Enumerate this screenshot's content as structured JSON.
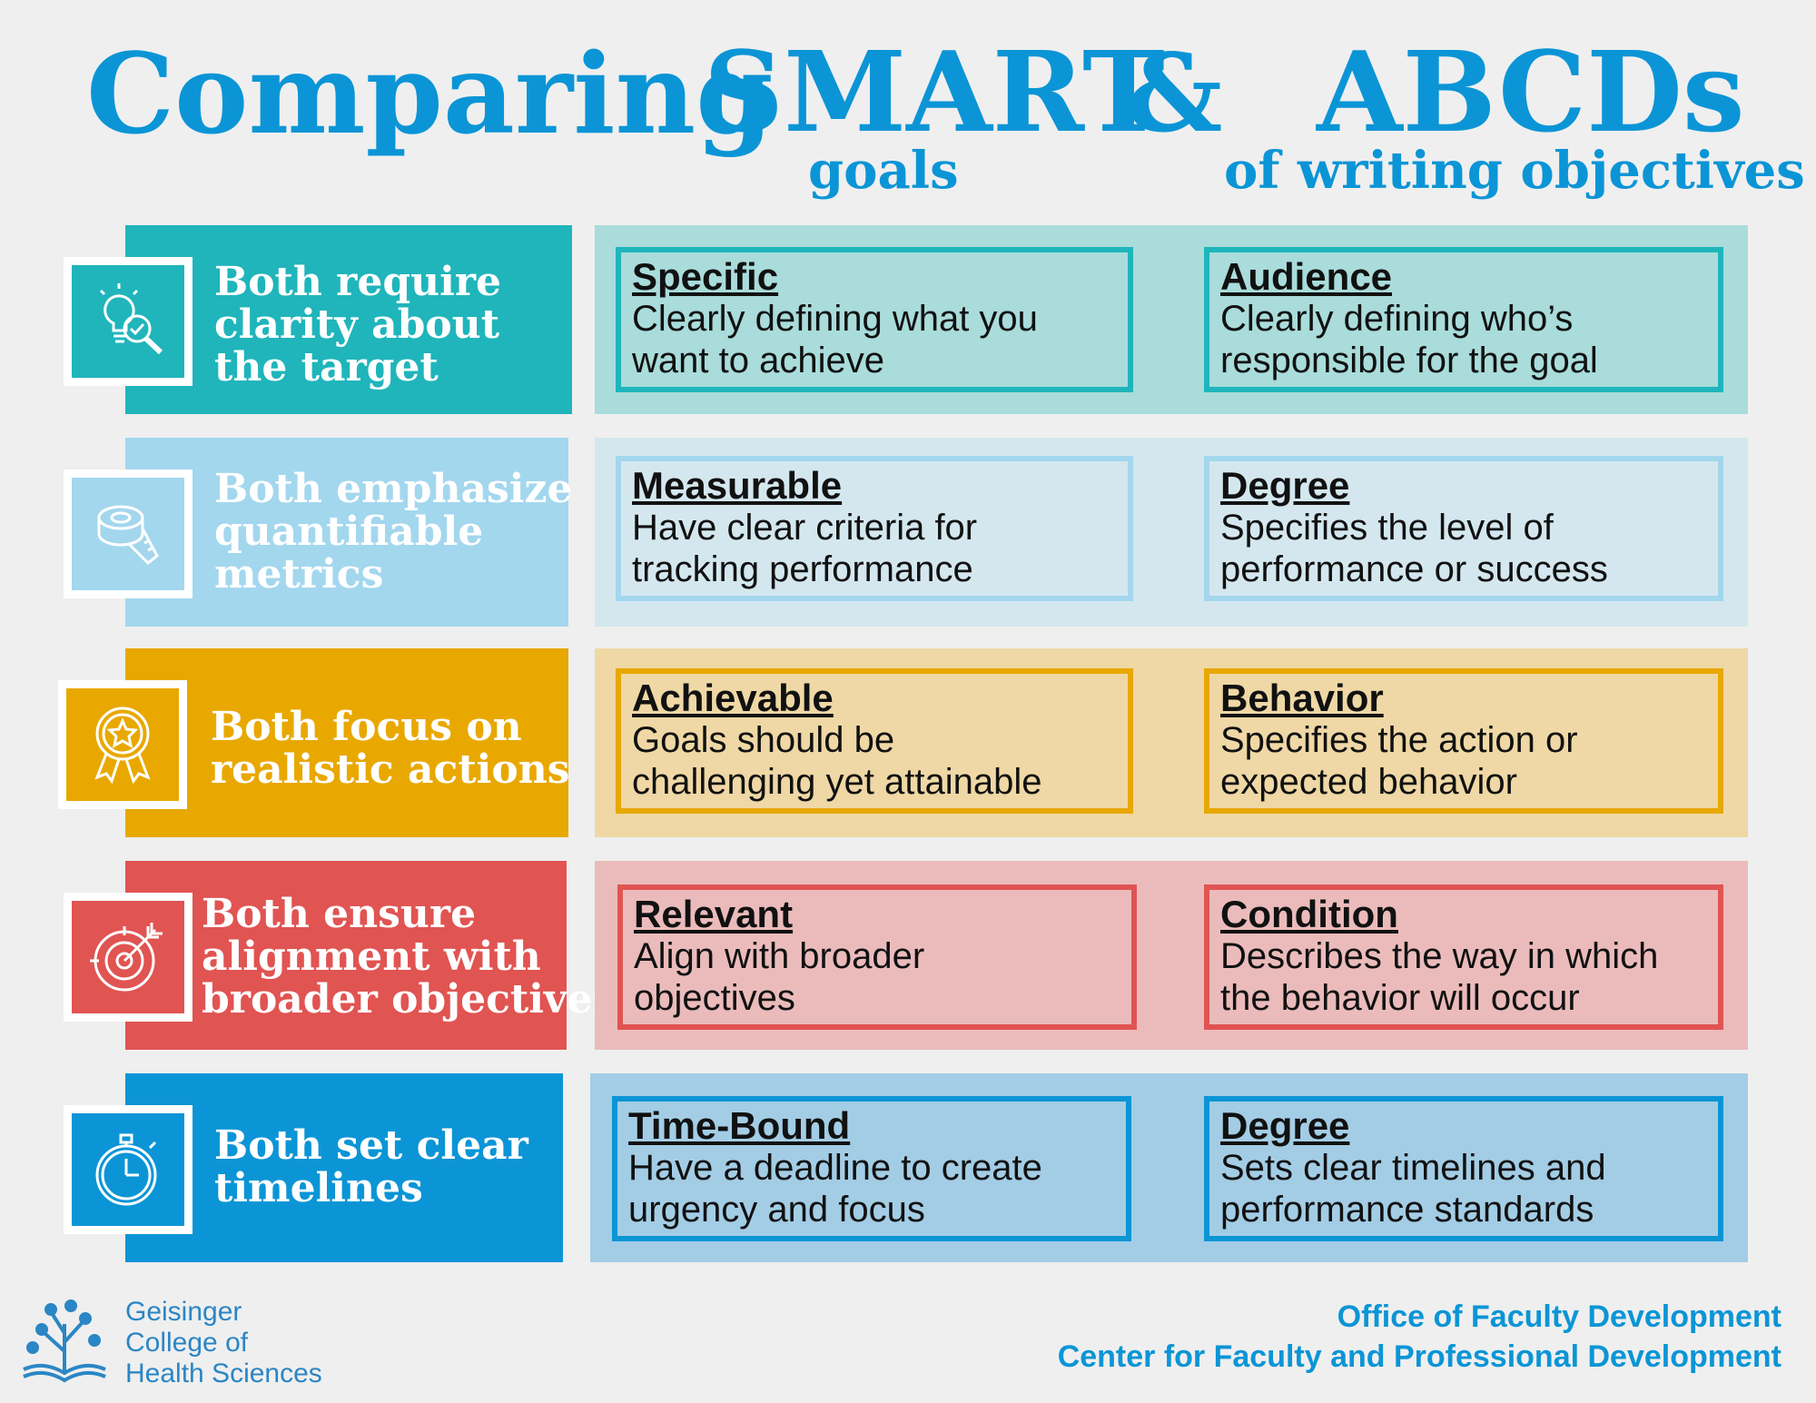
{
  "header": {
    "title_word1": "Comparing",
    "title_word2": "SMART",
    "ampersand": "&",
    "title_word3": "ABCDs",
    "subtitle_smart": "goals",
    "subtitle_abcd": "of writing objectives"
  },
  "rows": [
    {
      "label": [
        "Both require",
        "clarity about",
        "the target"
      ],
      "icon": "lightbulb-magnifier-icon",
      "smart": {
        "term": "Specific",
        "desc": [
          "Clearly defining what you",
          "want to achieve"
        ]
      },
      "abcd": {
        "term": "Audience",
        "desc": [
          "Clearly defining who’s",
          "responsible for the goal"
        ]
      },
      "colors": {
        "label": "#1fb5bb",
        "panel": "#a9dcdb",
        "card_border": "#1fb5bb"
      }
    },
    {
      "label": [
        "Both emphasize",
        "quantifiable",
        "metrics"
      ],
      "icon": "tape-measure-icon",
      "smart": {
        "term": "Measurable",
        "desc": [
          "Have clear criteria for",
          "tracking performance"
        ]
      },
      "abcd": {
        "term": "Degree",
        "desc": [
          "Specifies the level of",
          "performance or success"
        ]
      },
      "colors": {
        "label": "#a3d7ee",
        "panel": "#d4e7ef",
        "card_border": "#a3d7ee"
      }
    },
    {
      "label": [
        "Both focus on",
        "realistic actions"
      ],
      "icon": "award-ribbon-icon",
      "smart": {
        "term": "Achievable",
        "desc": [
          "Goals should be",
          "challenging yet attainable"
        ]
      },
      "abcd": {
        "term": "Behavior",
        "desc": [
          "Specifies the action or",
          "expected behavior"
        ]
      },
      "colors": {
        "label": "#e8a800",
        "panel": "#efd8a5",
        "card_border": "#e8a800"
      }
    },
    {
      "label": [
        "Both ensure",
        "alignment with",
        "broader objectives"
      ],
      "icon": "target-arrow-icon",
      "smart": {
        "term": "Relevant",
        "desc": [
          "Align with broader",
          "objectives"
        ]
      },
      "abcd": {
        "term": "Condition",
        "desc": [
          "Describes the way in which",
          "the behavior will occur"
        ]
      },
      "colors": {
        "label": "#e05452",
        "panel": "#ebbbbb",
        "card_border": "#e05452"
      }
    },
    {
      "label": [
        "Both set clear",
        "timelines"
      ],
      "icon": "stopwatch-icon",
      "smart": {
        "term": "Time-Bound",
        "desc": [
          "Have a deadline to create",
          "urgency and focus"
        ]
      },
      "abcd": {
        "term": "Degree",
        "desc": [
          "Sets clear timelines and",
          "performance standards"
        ]
      },
      "colors": {
        "label": "#0b95d6",
        "panel": "#a3cde5",
        "card_border": "#0b95d6"
      }
    }
  ],
  "footer": {
    "logo_lines": [
      "Geisinger",
      "College of",
      "Health Sciences"
    ],
    "logo_icon": "tree-book-logo-icon",
    "office_line1": "Office of Faculty Development",
    "office_line2": "Center for Faculty and Professional Development"
  }
}
